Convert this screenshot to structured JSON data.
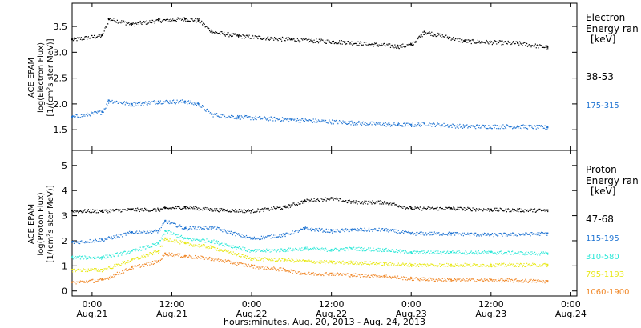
{
  "x_axis": {
    "start": "2013-08-20T21:00",
    "end": "2013-08-24T00:55",
    "ticks": [
      {
        "time": "2013-08-21T00:00",
        "hm": "0:00",
        "date": "Aug.21"
      },
      {
        "time": "2013-08-21T12:00",
        "hm": "12:00",
        "date": "Aug.21"
      },
      {
        "time": "2013-08-22T00:00",
        "hm": "0:00",
        "date": "Aug.22"
      },
      {
        "time": "2013-08-22T12:00",
        "hm": "12:00",
        "date": "Aug.22"
      },
      {
        "time": "2013-08-23T00:00",
        "hm": "0:00",
        "date": "Aug.23"
      },
      {
        "time": "2013-08-23T12:00",
        "hm": "12:00",
        "date": "Aug.23"
      },
      {
        "time": "2013-08-24T00:00",
        "hm": "0:00",
        "date": "Aug.24"
      }
    ],
    "label": "hours:minutes, Aug. 20, 2013 - Aug. 24, 2013"
  },
  "chart_data": [
    {
      "type": "scatter",
      "panel": "electron",
      "ylabel_lines": [
        "ACE EPAM",
        "log(Electron Flux)",
        "[1/(cm²s ster MeV)]"
      ],
      "ylim": [
        1.1,
        3.95
      ],
      "yticks": [
        "1.5",
        "2.0",
        "2.5",
        "3.0",
        "3.5"
      ],
      "ytick_values": [
        1.5,
        2.0,
        2.5,
        3.0,
        3.5
      ],
      "legend_title": [
        "Electron",
        "Energy ran",
        "[keV]"
      ],
      "x_times": [
        "2013-08-20T21:00",
        "2013-08-21T01:30",
        "2013-08-21T02:30",
        "2013-08-21T06:00",
        "2013-08-21T10:00",
        "2013-08-21T14:00",
        "2013-08-21T16:00",
        "2013-08-21T18:00",
        "2013-08-21T22:00",
        "2013-08-22T06:00",
        "2013-08-22T14:00",
        "2013-08-22T22:00",
        "2013-08-23T00:00",
        "2013-08-23T02:00",
        "2013-08-23T08:00",
        "2013-08-23T16:00",
        "2013-08-23T20:30"
      ],
      "series": [
        {
          "name": "38-53",
          "color": "#000000",
          "values": [
            3.25,
            3.33,
            3.65,
            3.55,
            3.62,
            3.65,
            3.62,
            3.4,
            3.32,
            3.25,
            3.2,
            3.12,
            3.15,
            3.4,
            3.22,
            3.18,
            3.1
          ]
        },
        {
          "name": "175-315",
          "color": "#1e73d2",
          "values": [
            1.75,
            1.85,
            2.07,
            2.0,
            2.05,
            2.05,
            2.0,
            1.8,
            1.75,
            1.7,
            1.65,
            1.6,
            1.6,
            1.62,
            1.57,
            1.57,
            1.55
          ]
        }
      ]
    },
    {
      "type": "scatter",
      "panel": "proton",
      "ylabel_lines": [
        "ACE EPAM",
        "log(Proton Flux)",
        "[1/(cm²s ster MeV)]"
      ],
      "ylim": [
        -0.2,
        5.6
      ],
      "yticks": [
        "0",
        "1",
        "2",
        "3",
        "4",
        "5"
      ],
      "ytick_values": [
        0,
        1,
        2,
        3,
        4,
        5
      ],
      "legend_title": [
        "Proton",
        "Energy ran",
        "[keV]"
      ],
      "x_times": [
        "2013-08-20T21:00",
        "2013-08-21T01:30",
        "2013-08-21T06:00",
        "2013-08-21T10:00",
        "2013-08-21T11:00",
        "2013-08-21T14:00",
        "2013-08-21T18:00",
        "2013-08-22T00:00",
        "2013-08-22T05:00",
        "2013-08-22T08:00",
        "2013-08-22T12:00",
        "2013-08-22T15:00",
        "2013-08-22T20:00",
        "2013-08-23T00:00",
        "2013-08-23T06:00",
        "2013-08-23T12:00",
        "2013-08-23T20:30"
      ],
      "series": [
        {
          "name": "47-68",
          "color": "#000000",
          "values": [
            3.2,
            3.2,
            3.25,
            3.25,
            3.3,
            3.35,
            3.25,
            3.2,
            3.35,
            3.6,
            3.7,
            3.55,
            3.55,
            3.3,
            3.3,
            3.25,
            3.22
          ]
        },
        {
          "name": "115-195",
          "color": "#1e73d2",
          "values": [
            1.95,
            2.05,
            2.35,
            2.4,
            2.8,
            2.5,
            2.55,
            2.1,
            2.25,
            2.5,
            2.4,
            2.45,
            2.45,
            2.3,
            2.3,
            2.25,
            2.3
          ]
        },
        {
          "name": "310-580",
          "color": "#2ee8d8",
          "values": [
            1.35,
            1.35,
            1.6,
            1.9,
            2.4,
            2.1,
            2.0,
            1.6,
            1.65,
            1.7,
            1.65,
            1.7,
            1.65,
            1.55,
            1.55,
            1.55,
            1.5
          ]
        },
        {
          "name": "795-1193",
          "color": "#e8e817",
          "values": [
            0.85,
            0.85,
            1.25,
            1.6,
            2.1,
            1.9,
            1.75,
            1.3,
            1.25,
            1.2,
            1.15,
            1.15,
            1.1,
            1.05,
            1.05,
            1.05,
            1.05
          ]
        },
        {
          "name": "1060-1900",
          "color": "#f0892b",
          "values": [
            0.35,
            0.45,
            0.95,
            1.2,
            1.5,
            1.4,
            1.3,
            1.0,
            0.85,
            0.7,
            0.7,
            0.65,
            0.6,
            0.5,
            0.45,
            0.45,
            0.4
          ]
        }
      ]
    }
  ]
}
